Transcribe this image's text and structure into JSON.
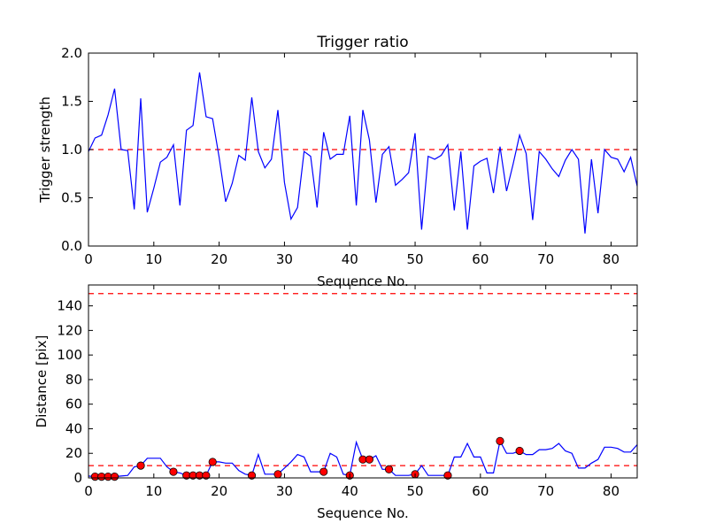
{
  "chart_data": [
    {
      "type": "line",
      "title": "Trigger ratio",
      "xlabel": "Sequence No.",
      "ylabel": "Trigger strength",
      "xlim": [
        0,
        84
      ],
      "ylim": [
        0,
        2.0
      ],
      "xticks": [
        0,
        10,
        20,
        30,
        40,
        50,
        60,
        70,
        80
      ],
      "yticks": [
        0.0,
        0.5,
        1.0,
        1.5,
        2.0
      ],
      "ytick_labels": [
        "0.0",
        "0.5",
        "1.0",
        "1.5",
        "2.0"
      ],
      "threshold": 1.0,
      "threshold_color": "#ff0000",
      "series_color": "#0000ff",
      "x": [
        0,
        1,
        2,
        3,
        4,
        5,
        6,
        7,
        8,
        9,
        10,
        11,
        12,
        13,
        14,
        15,
        16,
        17,
        18,
        19,
        20,
        21,
        22,
        23,
        24,
        25,
        26,
        27,
        28,
        29,
        30,
        31,
        32,
        33,
        34,
        35,
        36,
        37,
        38,
        39,
        40,
        41,
        42,
        43,
        44,
        45,
        46,
        47,
        48,
        49,
        50,
        51,
        52,
        53,
        54,
        55,
        56,
        57,
        58,
        59,
        60,
        61,
        62,
        63,
        64,
        65,
        66,
        67,
        68,
        69,
        70,
        71,
        72,
        73,
        74,
        75,
        76,
        77,
        78,
        79,
        80,
        81,
        82,
        83,
        84
      ],
      "y": [
        0.98,
        1.12,
        1.15,
        1.36,
        1.63,
        1.0,
        0.99,
        0.38,
        1.53,
        0.35,
        0.6,
        0.87,
        0.92,
        1.05,
        0.42,
        1.2,
        1.25,
        1.8,
        1.34,
        1.32,
        0.92,
        0.46,
        0.65,
        0.94,
        0.89,
        1.54,
        0.98,
        0.81,
        0.9,
        1.41,
        0.66,
        0.28,
        0.4,
        0.98,
        0.93,
        0.4,
        1.18,
        0.9,
        0.95,
        0.95,
        1.35,
        0.42,
        1.41,
        1.1,
        0.45,
        0.95,
        1.03,
        0.63,
        0.69,
        0.76,
        1.17,
        0.17,
        0.93,
        0.9,
        0.94,
        1.05,
        0.37,
        0.98,
        0.17,
        0.83,
        0.88,
        0.91,
        0.55,
        1.03,
        0.57,
        0.85,
        1.15,
        0.96,
        0.27,
        0.98,
        0.9,
        0.8,
        0.72,
        0.89,
        1.0,
        0.9,
        0.13,
        0.9,
        0.34,
        1.0,
        0.92,
        0.9,
        0.77,
        0.92,
        0.62
      ]
    },
    {
      "type": "line",
      "title": "",
      "xlabel": "Sequence No.",
      "ylabel": "Distance [pix]",
      "xlim": [
        0,
        84
      ],
      "ylim": [
        0,
        157
      ],
      "xticks": [
        0,
        10,
        20,
        30,
        40,
        50,
        60,
        70,
        80
      ],
      "yticks": [
        0,
        20,
        40,
        60,
        80,
        100,
        120,
        140
      ],
      "thresholds": [
        10,
        150
      ],
      "threshold_color": "#ff0000",
      "series_color": "#0000ff",
      "marker_color": "#ff0000",
      "x": [
        0,
        1,
        2,
        3,
        4,
        5,
        6,
        7,
        8,
        9,
        10,
        11,
        12,
        13,
        14,
        15,
        16,
        17,
        18,
        19,
        20,
        21,
        22,
        23,
        24,
        25,
        26,
        27,
        28,
        29,
        30,
        31,
        32,
        33,
        34,
        35,
        36,
        37,
        38,
        39,
        40,
        41,
        42,
        43,
        44,
        45,
        46,
        47,
        48,
        49,
        50,
        51,
        52,
        53,
        54,
        55,
        56,
        57,
        58,
        59,
        60,
        61,
        62,
        63,
        64,
        65,
        66,
        67,
        68,
        69,
        70,
        71,
        72,
        73,
        74,
        75,
        76,
        77,
        78,
        79,
        80,
        81,
        82,
        83,
        84
      ],
      "y": [
        1.5,
        1,
        1,
        1,
        1,
        1.5,
        2,
        9,
        10,
        16,
        16,
        16,
        9,
        5,
        4,
        2,
        2,
        2,
        2,
        13,
        13,
        12,
        12,
        6,
        3,
        2,
        19,
        3,
        3,
        3,
        8,
        13,
        19,
        17,
        5,
        5,
        5,
        20,
        17,
        3,
        2,
        29,
        15,
        15,
        18,
        7,
        7,
        2,
        2,
        2,
        3,
        10,
        2,
        2,
        2,
        2,
        17,
        17,
        28,
        17,
        17,
        4,
        4,
        30,
        20,
        20,
        22,
        19,
        19,
        23,
        23,
        24,
        28,
        22,
        20,
        8,
        8,
        12,
        15,
        25,
        25,
        24,
        21,
        21,
        27
      ],
      "markers": {
        "x": [
          1,
          2,
          3,
          4,
          8,
          13,
          15,
          16,
          17,
          18,
          19,
          25,
          29,
          36,
          40,
          42,
          43,
          46,
          50,
          55,
          63,
          66
        ],
        "y": [
          1,
          1,
          1,
          1,
          10,
          5,
          2,
          2,
          2,
          2,
          13,
          2,
          3,
          5,
          2,
          15,
          15,
          7,
          3,
          2,
          30,
          22
        ]
      }
    }
  ]
}
